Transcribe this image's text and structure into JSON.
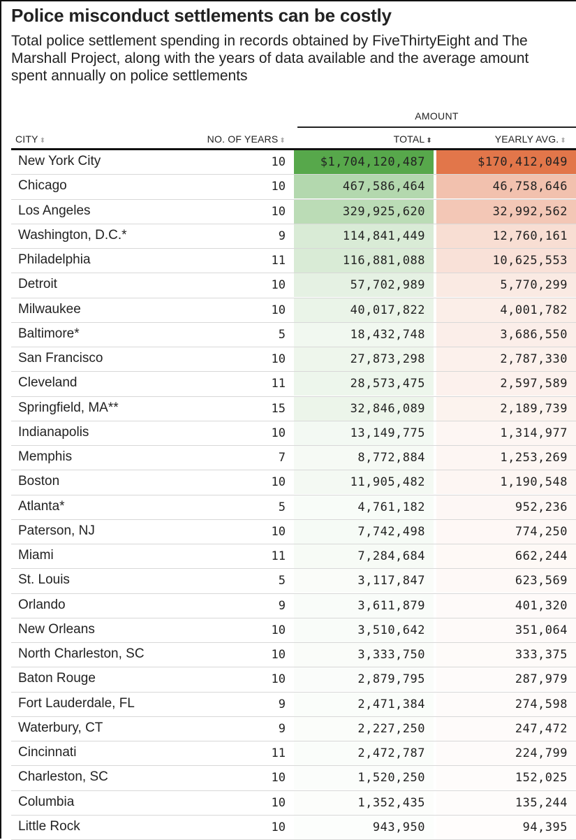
{
  "title": "Police misconduct settlements can be costly",
  "subtitle": "Total police settlement spending in records obtained by FiveThirtyEight and The Marshall Project, along with the years of data available and the average amount spent annually on police settlements",
  "table": {
    "group_header": "AMOUNT",
    "columns": {
      "city": "CITY",
      "years": "NO. OF YEARS",
      "total": "TOTAL",
      "avg": "YEARLY AVG."
    },
    "sort_icon": "sort-arrows-icon",
    "colors": {
      "total_scale": "#57a84b",
      "avg_scale": "#e2764a"
    },
    "rows": [
      {
        "city": "New York City",
        "years": "10",
        "total": "$1,704,120,487",
        "avg": "$170,412,049",
        "total_num": 1704120487,
        "avg_num": 170412049
      },
      {
        "city": "Chicago",
        "years": "10",
        "total": "467,586,464",
        "avg": "46,758,646",
        "total_num": 467586464,
        "avg_num": 46758646
      },
      {
        "city": "Los Angeles",
        "years": "10",
        "total": "329,925,620",
        "avg": "32,992,562",
        "total_num": 329925620,
        "avg_num": 32992562
      },
      {
        "city": "Washington, D.C.*",
        "years": "9",
        "total": "114,841,449",
        "avg": "12,760,161",
        "total_num": 114841449,
        "avg_num": 12760161
      },
      {
        "city": "Philadelphia",
        "years": "11",
        "total": "116,881,088",
        "avg": "10,625,553",
        "total_num": 116881088,
        "avg_num": 10625553
      },
      {
        "city": "Detroit",
        "years": "10",
        "total": "57,702,989",
        "avg": "5,770,299",
        "total_num": 57702989,
        "avg_num": 5770299
      },
      {
        "city": "Milwaukee",
        "years": "10",
        "total": "40,017,822",
        "avg": "4,001,782",
        "total_num": 40017822,
        "avg_num": 4001782
      },
      {
        "city": "Baltimore*",
        "years": "5",
        "total": "18,432,748",
        "avg": "3,686,550",
        "total_num": 18432748,
        "avg_num": 3686550
      },
      {
        "city": "San Francisco",
        "years": "10",
        "total": "27,873,298",
        "avg": "2,787,330",
        "total_num": 27873298,
        "avg_num": 2787330
      },
      {
        "city": "Cleveland",
        "years": "11",
        "total": "28,573,475",
        "avg": "2,597,589",
        "total_num": 28573475,
        "avg_num": 2597589
      },
      {
        "city": "Springfield, MA**",
        "years": "15",
        "total": "32,846,089",
        "avg": "2,189,739",
        "total_num": 32846089,
        "avg_num": 2189739
      },
      {
        "city": "Indianapolis",
        "years": "10",
        "total": "13,149,775",
        "avg": "1,314,977",
        "total_num": 13149775,
        "avg_num": 1314977
      },
      {
        "city": "Memphis",
        "years": "7",
        "total": "8,772,884",
        "avg": "1,253,269",
        "total_num": 8772884,
        "avg_num": 1253269
      },
      {
        "city": "Boston",
        "years": "10",
        "total": "11,905,482",
        "avg": "1,190,548",
        "total_num": 11905482,
        "avg_num": 1190548
      },
      {
        "city": "Atlanta*",
        "years": "5",
        "total": "4,761,182",
        "avg": "952,236",
        "total_num": 4761182,
        "avg_num": 952236
      },
      {
        "city": "Paterson, NJ",
        "years": "10",
        "total": "7,742,498",
        "avg": "774,250",
        "total_num": 7742498,
        "avg_num": 774250
      },
      {
        "city": "Miami",
        "years": "11",
        "total": "7,284,684",
        "avg": "662,244",
        "total_num": 7284684,
        "avg_num": 662244
      },
      {
        "city": "St. Louis",
        "years": "5",
        "total": "3,117,847",
        "avg": "623,569",
        "total_num": 3117847,
        "avg_num": 623569
      },
      {
        "city": "Orlando",
        "years": "9",
        "total": "3,611,879",
        "avg": "401,320",
        "total_num": 3611879,
        "avg_num": 401320
      },
      {
        "city": "New Orleans",
        "years": "10",
        "total": "3,510,642",
        "avg": "351,064",
        "total_num": 3510642,
        "avg_num": 351064
      },
      {
        "city": "North Charleston, SC",
        "years": "10",
        "total": "3,333,750",
        "avg": "333,375",
        "total_num": 3333750,
        "avg_num": 333375
      },
      {
        "city": "Baton Rouge",
        "years": "10",
        "total": "2,879,795",
        "avg": "287,979",
        "total_num": 2879795,
        "avg_num": 287979
      },
      {
        "city": "Fort Lauderdale, FL",
        "years": "9",
        "total": "2,471,384",
        "avg": "274,598",
        "total_num": 2471384,
        "avg_num": 274598
      },
      {
        "city": "Waterbury, CT",
        "years": "9",
        "total": "2,227,250",
        "avg": "247,472",
        "total_num": 2227250,
        "avg_num": 247472
      },
      {
        "city": "Cincinnati",
        "years": "11",
        "total": "2,472,787",
        "avg": "224,799",
        "total_num": 2472787,
        "avg_num": 224799
      },
      {
        "city": "Charleston, SC",
        "years": "10",
        "total": "1,520,250",
        "avg": "152,025",
        "total_num": 1520250,
        "avg_num": 152025
      },
      {
        "city": "Columbia",
        "years": "10",
        "total": "1,352,435",
        "avg": "135,244",
        "total_num": 1352435,
        "avg_num": 135244
      },
      {
        "city": "Little Rock",
        "years": "10",
        "total": "943,950",
        "avg": "94,395",
        "total_num": 943950,
        "avg_num": 94395
      }
    ]
  }
}
